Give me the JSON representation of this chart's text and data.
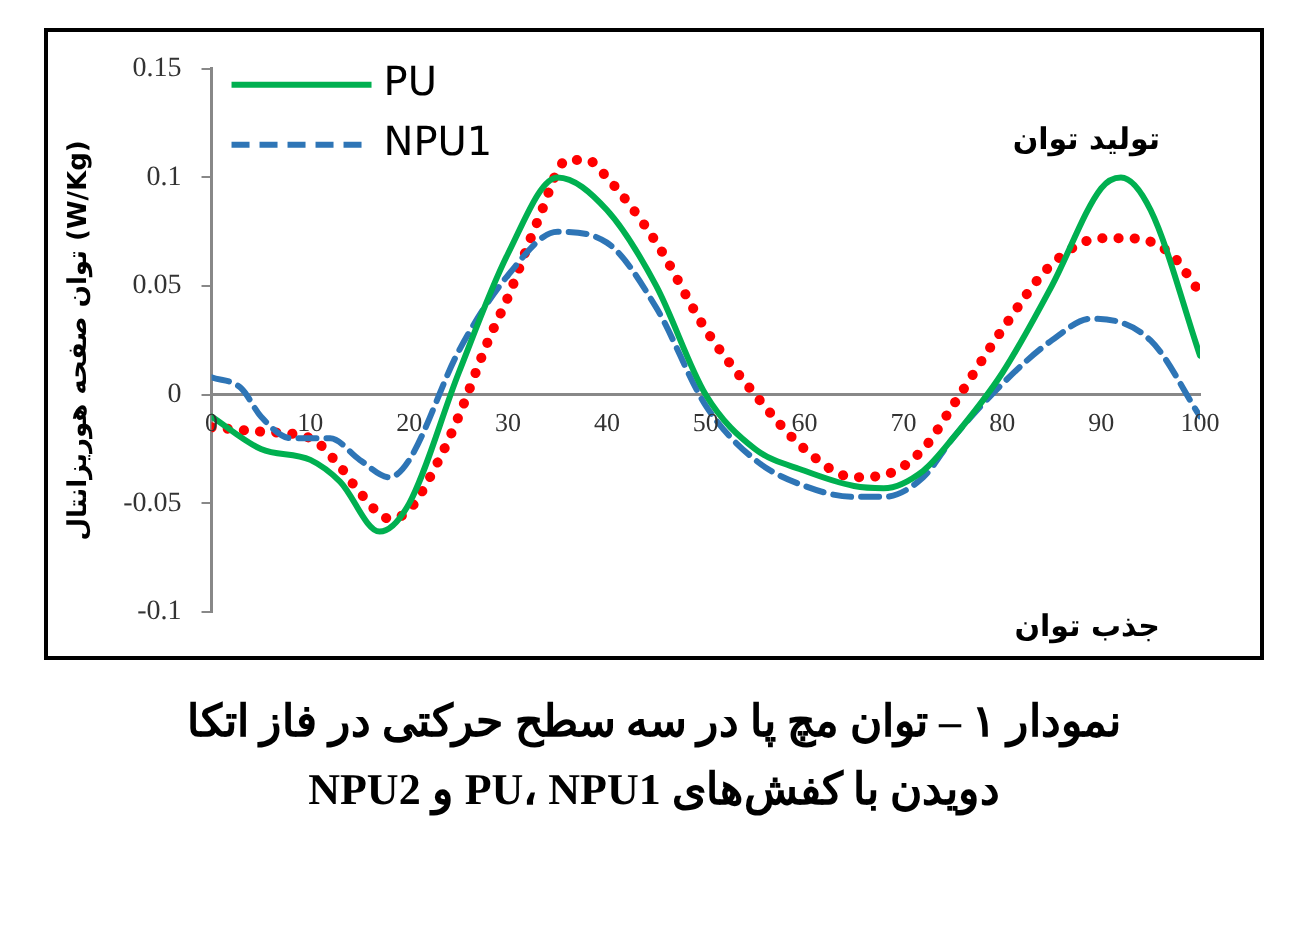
{
  "chart_data": {
    "type": "line",
    "title": "نمودار ۱ – توان مچ پا در سه سطح حرکتی در فاز اتکا دویدن با کفش‌های PU، NPU1 و NPU2",
    "ylabel": "توان صفحه هوریزانتال (W/Kg)",
    "annotations": [
      "تولید توان",
      "جذب توان"
    ],
    "xlim": [
      0,
      100
    ],
    "xticks": [
      0,
      10,
      20,
      30,
      40,
      50,
      60,
      70,
      80,
      90,
      100
    ],
    "ylim": [
      -0.1,
      0.15
    ],
    "yticks": [
      -0.1,
      -0.05,
      0,
      0.05,
      0.1,
      0.15
    ],
    "grid": false,
    "legend": "top left",
    "marker": "none",
    "series": [
      {
        "name": "PU",
        "color": "#00b050",
        "line_style": "solid",
        "x": [
          0,
          5,
          10,
          13,
          17,
          20,
          25,
          30,
          35,
          40,
          45,
          50,
          55,
          60,
          65,
          68,
          72,
          75,
          80,
          85,
          90,
          92,
          95,
          100
        ],
        "values": [
          -0.01,
          -0.025,
          -0.03,
          -0.04,
          -0.063,
          -0.05,
          0.01,
          0.065,
          0.1,
          0.085,
          0.05,
          0.0,
          -0.025,
          -0.035,
          -0.042,
          -0.043,
          -0.035,
          -0.02,
          0.01,
          0.05,
          0.095,
          0.1,
          0.085,
          0.018
        ]
      },
      {
        "name": "NPU1",
        "color": "#2e75b6",
        "line_style": "dashed",
        "x": [
          0,
          3,
          5,
          8,
          12,
          15,
          18,
          20,
          25,
          30,
          35,
          40,
          45,
          50,
          55,
          60,
          65,
          68,
          72,
          75,
          80,
          85,
          89,
          95,
          100
        ],
        "values": [
          0.008,
          0.003,
          -0.01,
          -0.02,
          -0.02,
          -0.03,
          -0.038,
          -0.03,
          0.02,
          0.055,
          0.075,
          0.07,
          0.04,
          -0.005,
          -0.03,
          -0.042,
          -0.047,
          -0.047,
          -0.038,
          -0.02,
          0.005,
          0.025,
          0.035,
          0.025,
          -0.01
        ]
      },
      {
        "color": "#ff0000",
        "line_style": "dotted",
        "x": [
          0,
          5,
          10,
          13,
          15,
          18,
          20,
          23,
          25,
          28,
          30,
          33,
          36,
          38,
          40,
          45,
          50,
          55,
          60,
          65,
          68,
          72,
          75,
          80,
          85,
          90,
          93,
          97,
          100
        ],
        "values": [
          -0.015,
          -0.017,
          -0.02,
          -0.033,
          -0.045,
          -0.057,
          -0.053,
          -0.03,
          -0.01,
          0.025,
          0.045,
          0.08,
          0.108,
          0.108,
          0.1,
          0.07,
          0.03,
          0.0,
          -0.025,
          -0.038,
          -0.037,
          -0.025,
          -0.005,
          0.03,
          0.06,
          0.072,
          0.072,
          0.065,
          0.047
        ]
      }
    ]
  }
}
